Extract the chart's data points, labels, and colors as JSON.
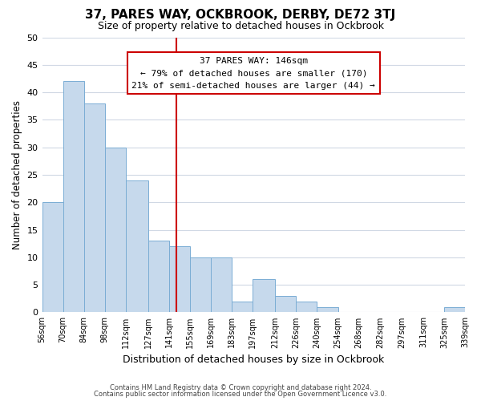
{
  "title": "37, PARES WAY, OCKBROOK, DERBY, DE72 3TJ",
  "subtitle": "Size of property relative to detached houses in Ockbrook",
  "xlabel": "Distribution of detached houses by size in Ockbrook",
  "ylabel": "Number of detached properties",
  "bar_color": "#c6d9ec",
  "bar_edge_color": "#7aadd4",
  "background_color": "#ffffff",
  "grid_color": "#d0d8e4",
  "vline_x": 146,
  "vline_color": "#cc0000",
  "bin_edges": [
    56,
    70,
    84,
    98,
    112,
    127,
    141,
    155,
    169,
    183,
    197,
    212,
    226,
    240,
    254,
    268,
    282,
    297,
    311,
    325,
    339
  ],
  "bin_labels": [
    "56sqm",
    "70sqm",
    "84sqm",
    "98sqm",
    "112sqm",
    "127sqm",
    "141sqm",
    "155sqm",
    "169sqm",
    "183sqm",
    "197sqm",
    "212sqm",
    "226sqm",
    "240sqm",
    "254sqm",
    "268sqm",
    "282sqm",
    "297sqm",
    "311sqm",
    "325sqm",
    "339sqm"
  ],
  "counts": [
    20,
    42,
    38,
    30,
    24,
    13,
    12,
    10,
    10,
    2,
    6,
    3,
    2,
    1,
    0,
    0,
    0,
    0,
    0,
    1
  ],
  "ylim": [
    0,
    50
  ],
  "yticks": [
    0,
    5,
    10,
    15,
    20,
    25,
    30,
    35,
    40,
    45,
    50
  ],
  "annotation_title": "37 PARES WAY: 146sqm",
  "annotation_line1": "← 79% of detached houses are smaller (170)",
  "annotation_line2": "21% of semi-detached houses are larger (44) →",
  "annotation_box_edge": "#cc0000",
  "footer_line1": "Contains HM Land Registry data © Crown copyright and database right 2024.",
  "footer_line2": "Contains public sector information licensed under the Open Government Licence v3.0."
}
